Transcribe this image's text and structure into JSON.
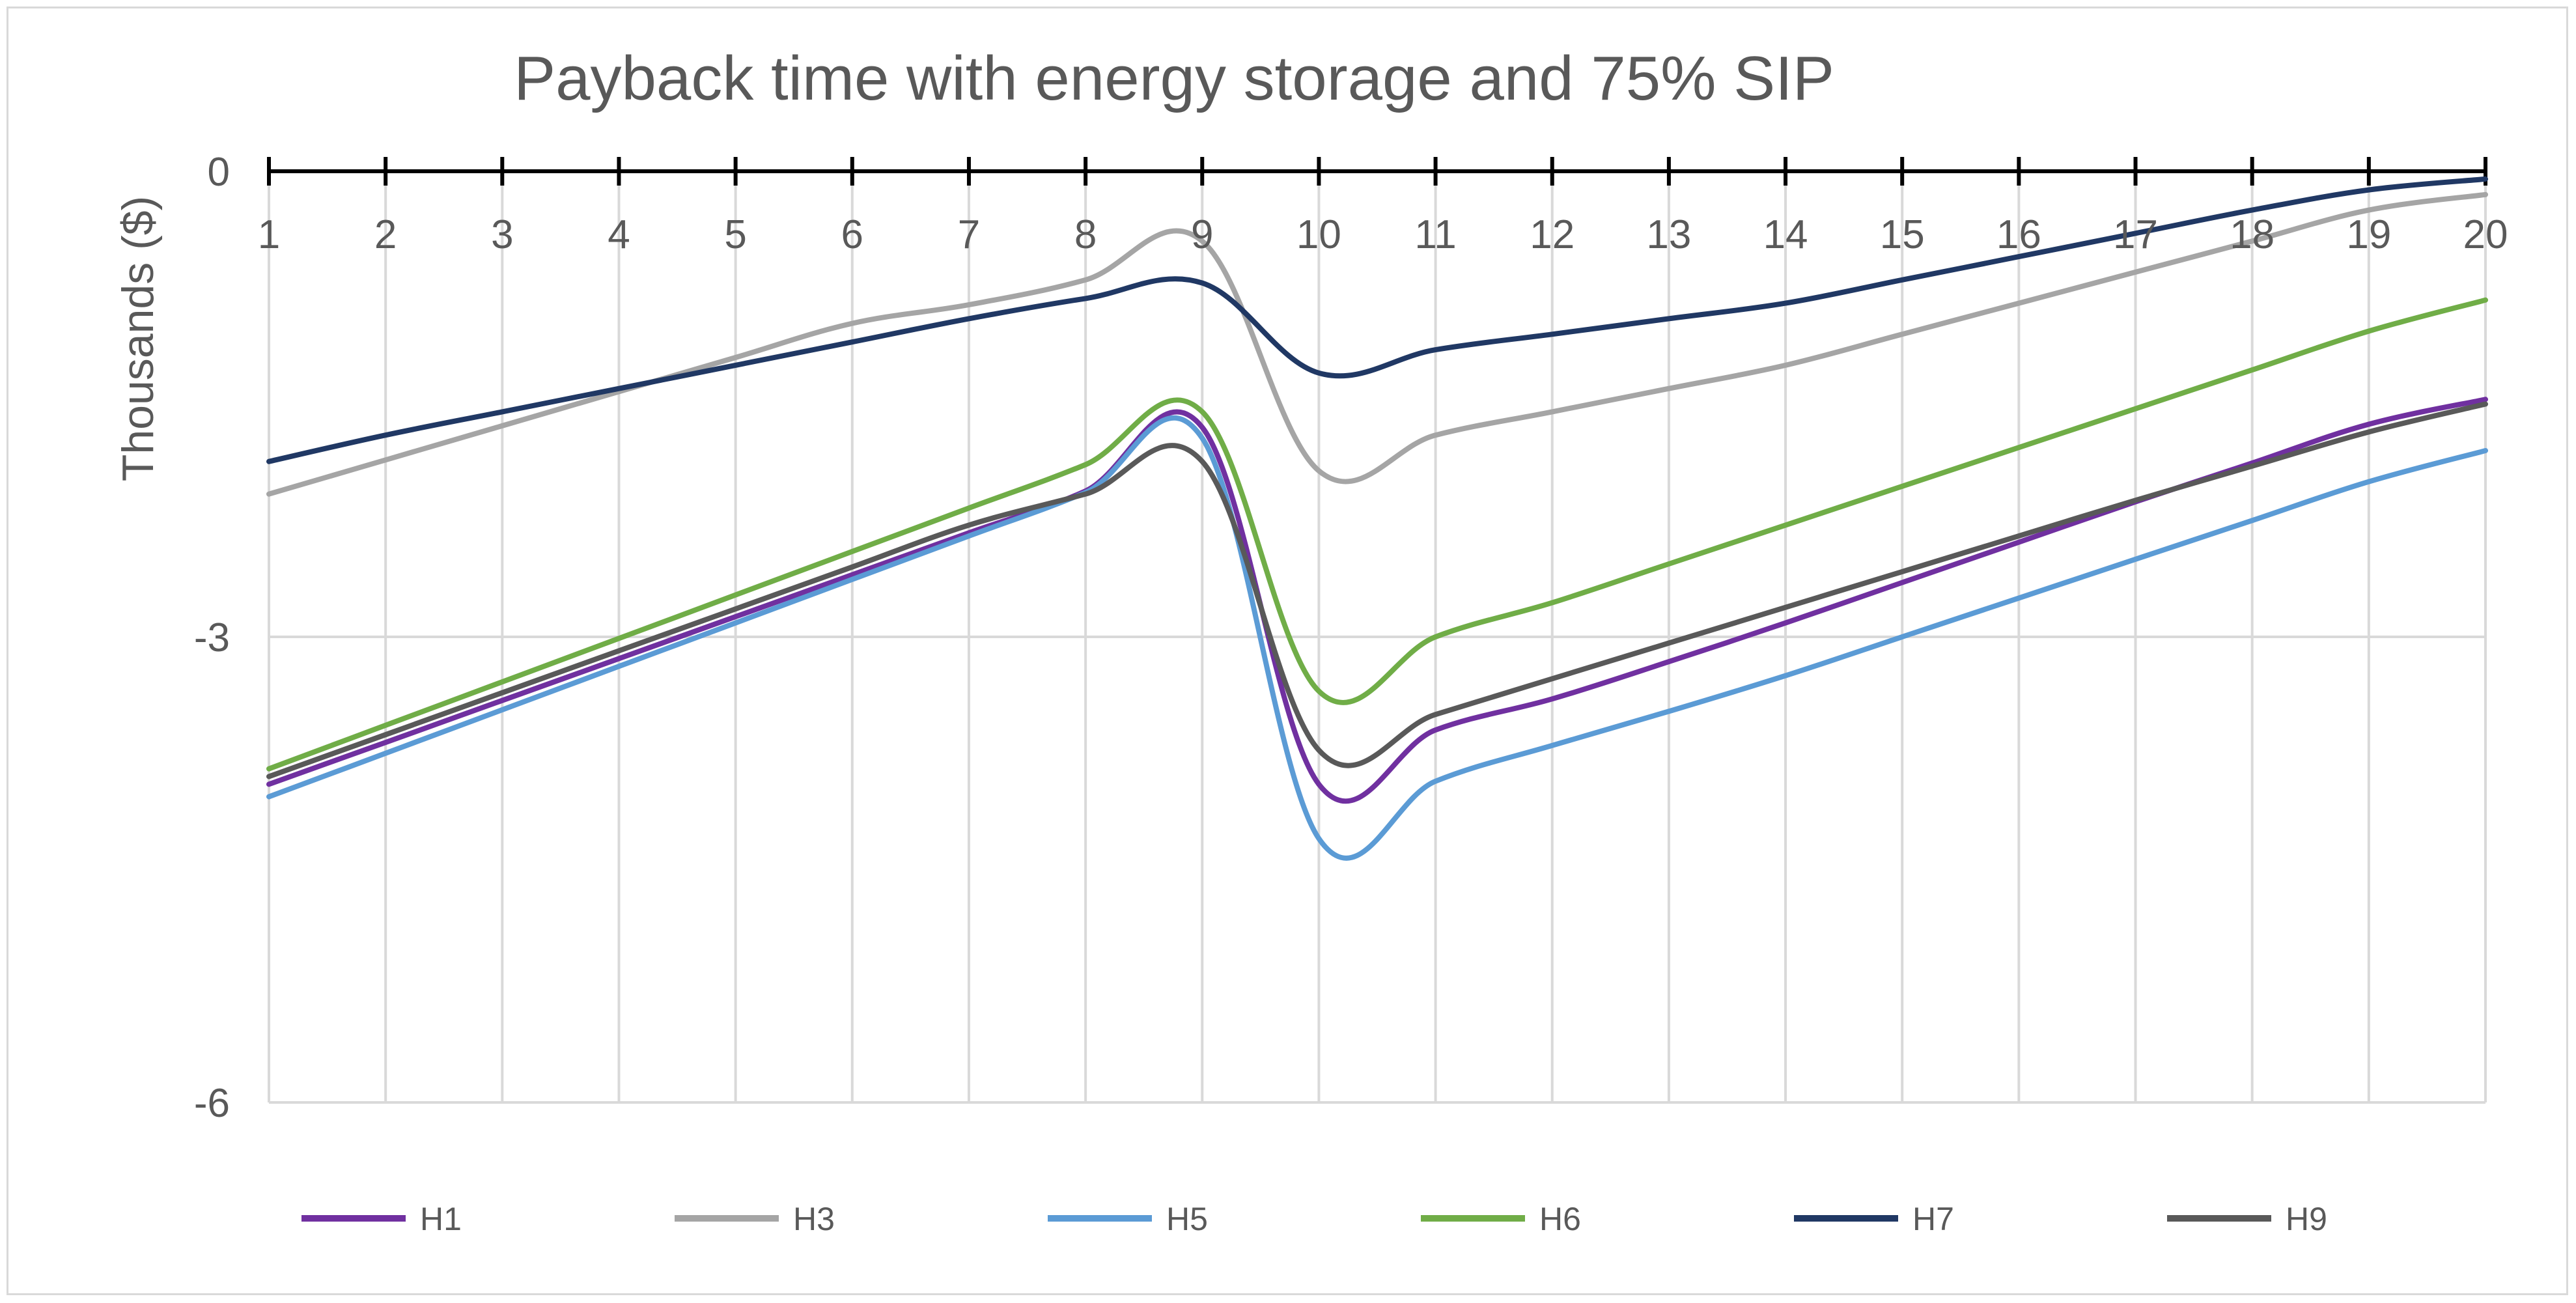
{
  "chart_data": {
    "type": "line",
    "title": "Payback time with energy storage and 75% SIP",
    "xlabel": "",
    "ylabel": "Thousands ($)",
    "x": [
      1,
      2,
      3,
      4,
      5,
      6,
      7,
      8,
      9,
      10,
      11,
      12,
      13,
      14,
      15,
      16,
      17,
      18,
      19,
      20
    ],
    "xlim": [
      1,
      20
    ],
    "ylim": [
      -6,
      0
    ],
    "y_ticks": [
      0,
      -3,
      -6
    ],
    "y_tick_labels": [
      "0",
      "-3",
      "-6"
    ],
    "grid": true,
    "legend_position": "bottom",
    "series": [
      {
        "name": "H1",
        "color": "#7030a0",
        "values": [
          -3.95,
          -3.68,
          -3.41,
          -3.14,
          -2.87,
          -2.6,
          -2.33,
          -2.06,
          -1.65,
          -3.95,
          -3.6,
          -3.4,
          -3.16,
          -2.91,
          -2.65,
          -2.39,
          -2.13,
          -1.88,
          -1.63,
          -1.47
        ]
      },
      {
        "name": "H3",
        "color": "#a5a5a5",
        "values": [
          -2.08,
          -1.86,
          -1.64,
          -1.42,
          -1.2,
          -0.98,
          -0.86,
          -0.7,
          -0.45,
          -1.93,
          -1.7,
          -1.55,
          -1.4,
          -1.25,
          -1.05,
          -0.85,
          -0.65,
          -0.45,
          -0.25,
          -0.15
        ]
      },
      {
        "name": "H5",
        "color": "#5b9bd5",
        "values": [
          -4.03,
          -3.75,
          -3.47,
          -3.19,
          -2.91,
          -2.63,
          -2.35,
          -2.07,
          -1.72,
          -4.3,
          -3.93,
          -3.7,
          -3.48,
          -3.25,
          -3.0,
          -2.75,
          -2.5,
          -2.25,
          -2.0,
          -1.8
        ]
      },
      {
        "name": "H6",
        "color": "#70ad47",
        "values": [
          -3.85,
          -3.57,
          -3.29,
          -3.01,
          -2.73,
          -2.45,
          -2.17,
          -1.89,
          -1.55,
          -3.35,
          -3.0,
          -2.78,
          -2.53,
          -2.28,
          -2.03,
          -1.78,
          -1.53,
          -1.28,
          -1.03,
          -0.83
        ]
      },
      {
        "name": "H7",
        "color": "#203864",
        "values": [
          -1.87,
          -1.7,
          -1.55,
          -1.4,
          -1.25,
          -1.1,
          -0.95,
          -0.82,
          -0.72,
          -1.3,
          -1.15,
          -1.05,
          -0.95,
          -0.85,
          -0.7,
          -0.55,
          -0.4,
          -0.25,
          -0.12,
          -0.05
        ]
      },
      {
        "name": "H9",
        "color": "#595959",
        "values": [
          -3.9,
          -3.63,
          -3.36,
          -3.09,
          -2.82,
          -2.55,
          -2.28,
          -2.08,
          -1.87,
          -3.73,
          -3.5,
          -3.27,
          -3.04,
          -2.81,
          -2.58,
          -2.35,
          -2.12,
          -1.9,
          -1.68,
          -1.5
        ]
      }
    ]
  }
}
